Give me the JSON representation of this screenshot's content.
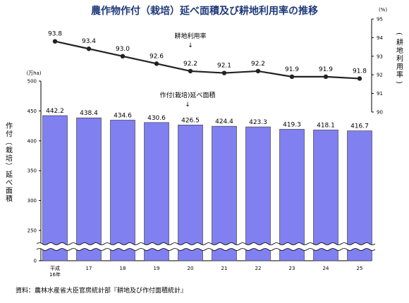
{
  "chart_data": {
    "title": "農作物作付（栽培）延べ面積及び耕地利用率の推移",
    "categories": [
      [
        "平成",
        "16年"
      ],
      "17",
      "18",
      "19",
      "20",
      "21",
      "22",
      "23",
      "24",
      "25"
    ],
    "bar_series": {
      "name": "作付（栽培）延べ面積",
      "values": [
        442.2,
        438.4,
        434.6,
        430.6,
        426.5,
        424.4,
        423.3,
        419.3,
        418.1,
        416.7
      ],
      "color": "#8080f0"
    },
    "line_series": {
      "name": "耕地利用率",
      "values": [
        93.8,
        93.4,
        93.0,
        92.6,
        92.2,
        92.1,
        92.2,
        91.9,
        91.9,
        91.8
      ],
      "color": "#222222"
    },
    "left_axis": {
      "unit": "(万ha)",
      "label": "作付（栽培）延べ面積",
      "ticks": [
        500,
        450,
        400,
        350,
        300,
        250,
        0
      ],
      "break_between": [
        0,
        250
      ]
    },
    "right_axis": {
      "unit": "(%)",
      "label": "耕地利用率",
      "ticks": [
        95,
        94,
        93,
        92,
        91,
        90
      ],
      "range": [
        90,
        95
      ]
    },
    "annotations": {
      "line": "耕地利用率",
      "bar": "作付(栽培)延べ面積",
      "arrow": "↓"
    },
    "source": "資料：農林水産省大臣官房統計部『耕地及び作付面積統計』",
    "type": "bar"
  }
}
